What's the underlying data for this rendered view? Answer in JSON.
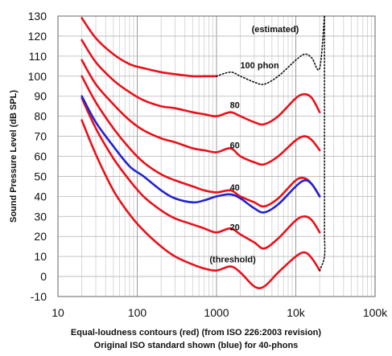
{
  "caption": {
    "line1": "Equal-loudness contours (red) (from ISO 226:2003 revision)",
    "line2": "Original ISO standard shown (blue) for 40-phons"
  },
  "chart_data": {
    "type": "line",
    "ylabel": "Sound Pressure Level (dB SPL)",
    "xlabel": "",
    "xscale": "log",
    "xlim": [
      10,
      100000
    ],
    "ylim": [
      -10,
      130
    ],
    "x_ticks": [
      10,
      100,
      1000,
      10000,
      100000
    ],
    "x_tick_labels": [
      "10",
      "100",
      "1000",
      "10k",
      "100k"
    ],
    "y_ticks": [
      -10,
      0,
      10,
      20,
      30,
      40,
      50,
      60,
      70,
      80,
      90,
      100,
      110,
      120,
      130
    ],
    "y_tick_labels": [
      "-10",
      "0",
      "10",
      "20",
      "30",
      "40",
      "50",
      "60",
      "70",
      "80",
      "90",
      "100",
      "110",
      "120",
      "130"
    ],
    "grid": true,
    "colors": {
      "red": "#e8111b",
      "blue": "#2222d0",
      "dotted": "#111111"
    },
    "series": [
      {
        "name": "",
        "color": "red",
        "style": "solid",
        "points": [
          [
            20,
            78
          ],
          [
            30,
            61
          ],
          [
            50,
            43
          ],
          [
            80,
            31
          ],
          [
            120,
            23
          ],
          [
            200,
            15
          ],
          [
            300,
            10
          ],
          [
            500,
            6
          ],
          [
            700,
            4
          ],
          [
            1000,
            3
          ],
          [
            1500,
            5
          ],
          [
            2000,
            2
          ],
          [
            3000,
            -5
          ],
          [
            4000,
            -5
          ],
          [
            6000,
            2
          ],
          [
            10000,
            10
          ],
          [
            13000,
            12
          ],
          [
            16000,
            9
          ],
          [
            20000,
            3
          ]
        ]
      },
      {
        "name": "",
        "color": "red",
        "style": "solid",
        "points": [
          [
            20,
            89
          ],
          [
            30,
            74
          ],
          [
            50,
            59
          ],
          [
            80,
            48
          ],
          [
            120,
            40
          ],
          [
            200,
            33
          ],
          [
            300,
            29
          ],
          [
            500,
            26
          ],
          [
            700,
            24
          ],
          [
            1000,
            22
          ],
          [
            1500,
            24
          ],
          [
            2000,
            21
          ],
          [
            3000,
            17
          ],
          [
            4000,
            14
          ],
          [
            6000,
            19
          ],
          [
            10000,
            28
          ],
          [
            13000,
            30
          ],
          [
            16000,
            28
          ],
          [
            20000,
            22
          ]
        ]
      },
      {
        "name": "",
        "color": "red",
        "style": "solid",
        "points": [
          [
            20,
            100
          ],
          [
            30,
            87
          ],
          [
            50,
            74
          ],
          [
            80,
            64
          ],
          [
            120,
            57
          ],
          [
            200,
            51
          ],
          [
            300,
            48
          ],
          [
            500,
            45
          ],
          [
            700,
            43
          ],
          [
            1000,
            42
          ],
          [
            1500,
            43
          ],
          [
            2000,
            40
          ],
          [
            3000,
            37
          ],
          [
            4000,
            35
          ],
          [
            6000,
            39
          ],
          [
            10000,
            48
          ],
          [
            13000,
            49
          ],
          [
            16000,
            46
          ],
          [
            20000,
            40
          ]
        ]
      },
      {
        "name": "",
        "color": "red",
        "style": "solid",
        "points": [
          [
            20,
            108
          ],
          [
            30,
            96
          ],
          [
            50,
            86
          ],
          [
            80,
            78
          ],
          [
            120,
            73
          ],
          [
            200,
            69
          ],
          [
            300,
            67
          ],
          [
            500,
            64
          ],
          [
            700,
            63
          ],
          [
            1000,
            62
          ],
          [
            1500,
            64
          ],
          [
            2000,
            60
          ],
          [
            3000,
            57
          ],
          [
            4000,
            56
          ],
          [
            6000,
            60
          ],
          [
            10000,
            68
          ],
          [
            13000,
            70
          ],
          [
            16000,
            68
          ],
          [
            20000,
            63
          ]
        ]
      },
      {
        "name": "",
        "color": "red",
        "style": "solid",
        "points": [
          [
            20,
            118
          ],
          [
            30,
            107
          ],
          [
            50,
            98
          ],
          [
            80,
            92
          ],
          [
            120,
            88
          ],
          [
            200,
            85
          ],
          [
            300,
            84
          ],
          [
            500,
            82
          ],
          [
            700,
            81
          ],
          [
            1000,
            80
          ],
          [
            1500,
            82
          ],
          [
            2000,
            80
          ],
          [
            3000,
            77
          ],
          [
            4000,
            76
          ],
          [
            6000,
            80
          ],
          [
            10000,
            89
          ],
          [
            13000,
            91
          ],
          [
            16000,
            89
          ],
          [
            20000,
            82
          ]
        ]
      },
      {
        "name": "",
        "color": "red",
        "style": "solid",
        "points": [
          [
            20,
            129
          ],
          [
            30,
            119
          ],
          [
            50,
            111
          ],
          [
            80,
            106
          ],
          [
            120,
            104
          ],
          [
            200,
            102
          ],
          [
            300,
            101
          ],
          [
            500,
            100
          ],
          [
            700,
            100
          ],
          [
            1000,
            100
          ]
        ]
      },
      {
        "name": "",
        "color": "dotted",
        "style": "dotted",
        "points": [
          [
            1000,
            100
          ],
          [
            1500,
            102
          ],
          [
            2000,
            100
          ],
          [
            3000,
            97
          ],
          [
            4000,
            96
          ],
          [
            6000,
            100
          ],
          [
            10000,
            108
          ],
          [
            13000,
            111
          ],
          [
            16000,
            109
          ],
          [
            20000,
            104
          ],
          [
            23000,
            130
          ]
        ]
      },
      {
        "name": "",
        "color": "dotted",
        "style": "dotted",
        "points": [
          [
            20000,
            3
          ],
          [
            23000,
            10
          ],
          [
            23000,
            22
          ],
          [
            23000,
            40
          ],
          [
            23000,
            63
          ],
          [
            23000,
            82
          ],
          [
            23000,
            104
          ],
          [
            23000,
            130
          ]
        ]
      },
      {
        "name": "",
        "color": "blue",
        "style": "solid",
        "points": [
          [
            20,
            90
          ],
          [
            30,
            77
          ],
          [
            50,
            65
          ],
          [
            80,
            55
          ],
          [
            120,
            50
          ],
          [
            200,
            43
          ],
          [
            300,
            39
          ],
          [
            500,
            37
          ],
          [
            700,
            38
          ],
          [
            1000,
            40
          ],
          [
            1500,
            41
          ],
          [
            2000,
            39
          ],
          [
            3000,
            34
          ],
          [
            4000,
            32
          ],
          [
            6000,
            36
          ],
          [
            10000,
            45
          ],
          [
            13000,
            48
          ],
          [
            16000,
            46
          ],
          [
            20000,
            40
          ]
        ]
      }
    ],
    "annotations": [
      {
        "text": "(estimated)",
        "x": 5500,
        "y": 122
      },
      {
        "text": "100 phon",
        "x": 3500,
        "y": 104
      },
      {
        "text": "80",
        "x": 1700,
        "y": 84
      },
      {
        "text": "60",
        "x": 1700,
        "y": 64
      },
      {
        "text": "40",
        "x": 1700,
        "y": 43
      },
      {
        "text": "20",
        "x": 1700,
        "y": 23
      },
      {
        "text": "(threshold)",
        "x": 1600,
        "y": 7
      }
    ]
  }
}
